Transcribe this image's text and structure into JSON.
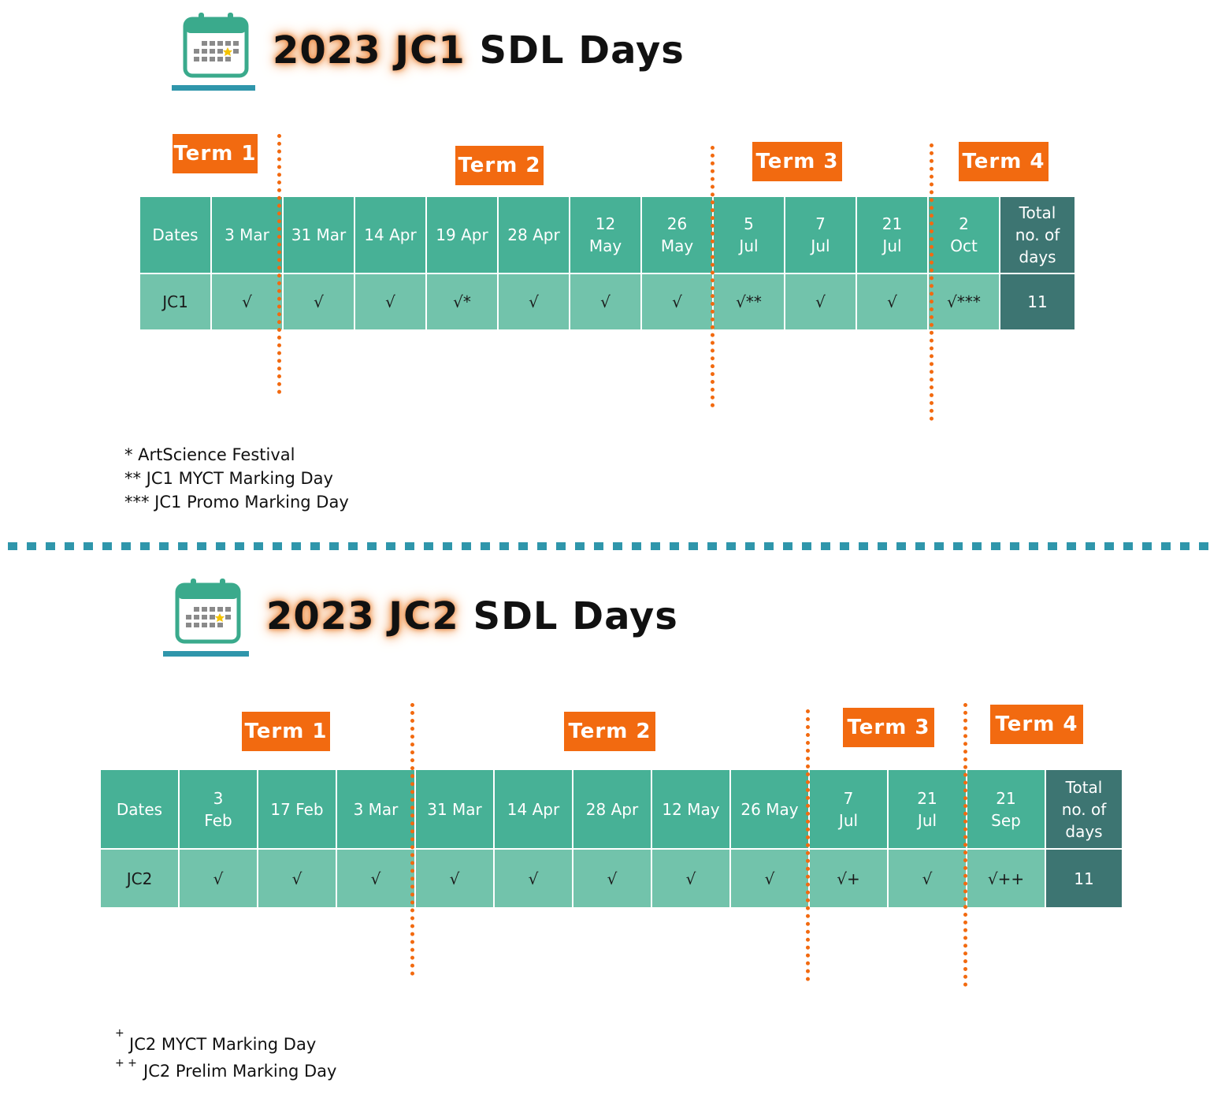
{
  "jc1": {
    "title_lead": "2023 JC1",
    "title_rest": " SDL Days",
    "terms": [
      "Term 1",
      "Term 2",
      "Term 3",
      "Term 4"
    ],
    "header": [
      "Dates",
      "3 Mar",
      "31 Mar",
      "14 Apr",
      "19 Apr",
      "28 Apr",
      "12\nMay",
      "26\nMay",
      "5\nJul",
      "7\nJul",
      "21\nJul",
      "2\nOct",
      "Total\nno. of\ndays"
    ],
    "row": [
      "JC1",
      "√",
      "√",
      "√",
      "√*",
      "√",
      "√",
      "√",
      "√**",
      "√",
      "√",
      "√***",
      "11"
    ],
    "notes": [
      "* ArtScience Festival",
      "** JC1 MYCT Marking Day",
      "*** JC1 Promo Marking Day"
    ]
  },
  "jc2": {
    "title_lead": "2023 JC2",
    "title_rest": " SDL Days",
    "terms": [
      "Term 1",
      "Term 2",
      "Term 3",
      "Term 4"
    ],
    "header": [
      "Dates",
      "3\nFeb",
      "17 Feb",
      "3 Mar",
      "31 Mar",
      "14 Apr",
      "28 Apr",
      "12 May",
      "26 May",
      "7\nJul",
      "21\nJul",
      "21\nSep",
      "Total\nno. of\ndays"
    ],
    "row": [
      "JC2",
      "√",
      "√",
      "√",
      "√",
      "√",
      "√",
      "√",
      "√",
      "√+",
      "√",
      "√++",
      "11"
    ],
    "notes": [
      "+",
      "JC2 MYCT Marking Day",
      "+ +",
      "JC2 Prelim Marking Day"
    ]
  },
  "colors": {
    "header_teal": "#47b196",
    "row_teal": "#72c3ab",
    "total_dark": "#3d7572",
    "term_orange": "#f26a10",
    "divider_blue": "#2f96ab"
  },
  "icons": [
    "calendar-icon",
    "calendar-icon"
  ]
}
